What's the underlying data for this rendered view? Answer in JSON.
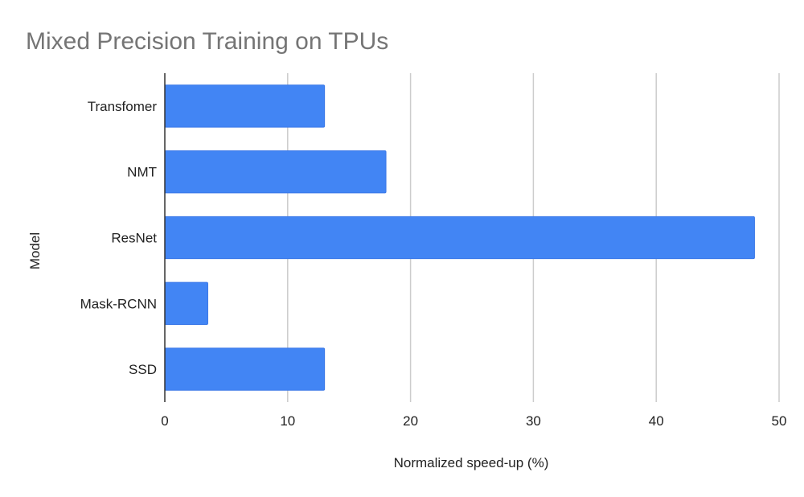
{
  "chart_data": {
    "type": "bar",
    "orientation": "horizontal",
    "title": "Mixed Precision Training on TPUs",
    "xlabel": "Normalized speed-up (%)",
    "ylabel": "Model",
    "categories": [
      "Transfomer",
      "NMT",
      "ResNet",
      "Mask-RCNN",
      "SSD"
    ],
    "values": [
      13,
      18,
      48,
      3.5,
      13
    ],
    "xlim": [
      0,
      50
    ],
    "xticks": [
      "0",
      "10",
      "20",
      "30",
      "40",
      "50"
    ],
    "grid": true,
    "legend": "none",
    "bar_color": "#4285f4"
  }
}
